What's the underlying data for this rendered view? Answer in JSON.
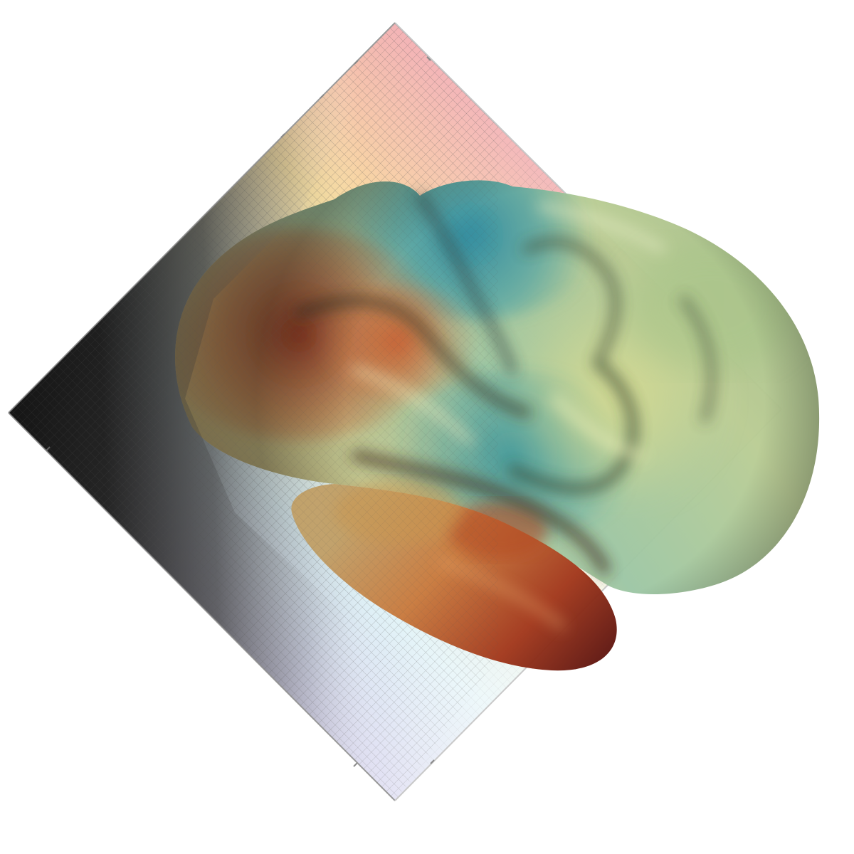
{
  "image": {
    "subject": "cortical-surface-over-matrix-plot",
    "palette": {
      "background": "#ffffff",
      "matrix_dark": "#1c1c1c",
      "matrix_top": "#f2a9b9",
      "matrix_yellow": "#f9dd97",
      "matrix_bottom": "#c6c4e8",
      "matrix_bottom_right": "#d6eef4",
      "surface_green": "#b8c88d",
      "surface_teal": "#2f8ea0",
      "surface_yellow": "#e6e08f",
      "surface_orange": "#c96b3a",
      "surface_red": "#7a2216"
    }
  }
}
